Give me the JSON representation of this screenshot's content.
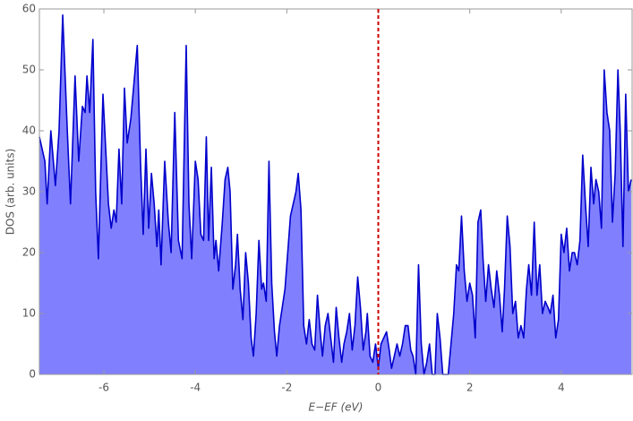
{
  "chart_data": {
    "type": "area",
    "x_label": "E−EF (eV)",
    "y_label": "DOS (arb. units)",
    "x": [
      -7.41,
      -7.29,
      -7.24,
      -7.16,
      -7.06,
      -6.98,
      -6.9,
      -6.8,
      -6.73,
      -6.63,
      -6.55,
      -6.47,
      -6.41,
      -6.37,
      -6.31,
      -6.24,
      -6.18,
      -6.12,
      -6.02,
      -5.96,
      -5.9,
      -5.84,
      -5.78,
      -5.73,
      -5.67,
      -5.61,
      -5.55,
      -5.49,
      -5.41,
      -5.27,
      -5.2,
      -5.14,
      -5.08,
      -5.02,
      -4.96,
      -4.9,
      -4.84,
      -4.8,
      -4.75,
      -4.67,
      -4.59,
      -4.53,
      -4.45,
      -4.37,
      -4.29,
      -4.2,
      -4.14,
      -4.08,
      -4.0,
      -3.94,
      -3.88,
      -3.82,
      -3.76,
      -3.71,
      -3.65,
      -3.59,
      -3.55,
      -3.49,
      -3.41,
      -3.35,
      -3.29,
      -3.24,
      -3.18,
      -3.12,
      -3.08,
      -3.02,
      -2.96,
      -2.9,
      -2.84,
      -2.78,
      -2.73,
      -2.67,
      -2.61,
      -2.55,
      -2.51,
      -2.45,
      -2.39,
      -2.33,
      -2.27,
      -2.22,
      -2.16,
      -2.1,
      -2.04,
      -1.98,
      -1.92,
      -1.8,
      -1.75,
      -1.69,
      -1.63,
      -1.57,
      -1.51,
      -1.45,
      -1.39,
      -1.33,
      -1.27,
      -1.22,
      -1.16,
      -1.1,
      -1.04,
      -0.98,
      -0.92,
      -0.86,
      -0.8,
      -0.75,
      -0.69,
      -0.63,
      -0.57,
      -0.51,
      -0.45,
      -0.39,
      -0.33,
      -0.27,
      -0.24,
      -0.18,
      -0.12,
      -0.06,
      0,
      0.06,
      0.12,
      0.18,
      0.24,
      0.29,
      0.35,
      0.41,
      0.47,
      0.53,
      0.59,
      0.65,
      0.71,
      0.76,
      0.82,
      0.88,
      0.94,
      1.0,
      1.06,
      1.12,
      1.18,
      1.24,
      1.29,
      1.35,
      1.41,
      1.47,
      1.53,
      1.59,
      1.65,
      1.71,
      1.76,
      1.82,
      1.88,
      1.94,
      2.0,
      2.06,
      2.12,
      2.18,
      2.24,
      2.29,
      2.35,
      2.41,
      2.47,
      2.53,
      2.59,
      2.65,
      2.71,
      2.76,
      2.82,
      2.88,
      2.94,
      3.0,
      3.06,
      3.12,
      3.18,
      3.24,
      3.29,
      3.35,
      3.41,
      3.47,
      3.53,
      3.59,
      3.65,
      3.71,
      3.76,
      3.82,
      3.88,
      3.94,
      4.0,
      4.06,
      4.12,
      4.18,
      4.24,
      4.29,
      4.35,
      4.41,
      4.47,
      4.53,
      4.59,
      4.65,
      4.71,
      4.76,
      4.82,
      4.88,
      4.94,
      5.0,
      5.06,
      5.12,
      5.18,
      5.24,
      5.29,
      5.35,
      5.41,
      5.47,
      5.53
    ],
    "values": [
      39,
      35,
      28,
      40,
      31,
      40,
      59,
      40,
      28,
      49,
      35,
      44,
      43,
      49,
      43,
      55,
      30,
      19,
      46,
      37,
      28,
      24,
      27,
      25,
      37,
      28,
      47,
      38,
      42,
      54,
      35,
      23,
      37,
      24,
      33,
      28,
      21,
      27,
      18,
      35,
      25,
      20,
      43,
      22,
      19,
      54,
      28,
      19,
      35,
      32,
      23,
      22,
      39,
      22,
      34,
      19,
      22,
      17,
      25,
      32,
      34,
      30,
      14,
      18,
      23,
      14,
      9,
      20,
      15,
      6,
      3,
      10,
      22,
      14,
      15,
      12,
      35,
      15,
      7,
      3,
      8,
      11,
      14,
      20,
      26,
      30,
      33,
      27,
      8,
      5,
      9,
      5,
      4,
      13,
      7,
      3,
      8,
      10,
      6,
      2,
      11,
      6,
      2,
      5,
      7,
      10,
      4,
      8,
      16,
      11,
      4,
      7,
      10,
      3,
      2,
      5,
      1,
      5,
      6,
      7,
      4,
      1,
      3,
      5,
      3,
      5,
      8,
      8,
      4,
      3,
      0,
      18,
      5,
      0,
      2,
      5,
      0,
      0,
      10,
      6,
      0,
      0,
      0,
      5,
      10,
      18,
      17,
      26,
      17,
      12,
      15,
      13,
      6,
      25,
      27,
      19,
      12,
      18,
      14,
      11,
      17,
      13,
      7,
      14,
      26,
      21,
      10,
      12,
      6,
      8,
      6,
      14,
      18,
      13,
      25,
      13,
      18,
      10,
      12,
      11,
      10,
      13,
      6,
      9,
      23,
      20,
      24,
      17,
      20,
      20,
      18,
      22,
      36,
      28,
      21,
      34,
      28,
      32,
      30,
      24,
      50,
      43,
      40,
      25,
      33,
      50,
      40,
      21,
      46,
      30,
      32
    ],
    "color": "#0000cc",
    "fill": "#8080ff",
    "xlim": [
      -7.41,
      5.55
    ],
    "ylim": [
      0,
      60
    ],
    "xticks": [
      -6,
      -4,
      -2,
      0,
      2,
      4
    ],
    "yticks": [
      0,
      10,
      20,
      30,
      40,
      50,
      60
    ],
    "vline": {
      "x": 0,
      "color": "#cc0000"
    }
  }
}
